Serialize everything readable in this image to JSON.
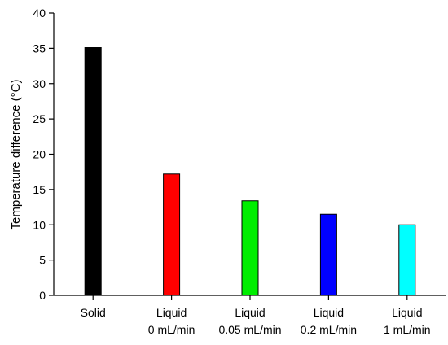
{
  "chart_data": {
    "type": "bar",
    "title": "",
    "xlabel": "",
    "ylabel": "Temperature difference (°C)",
    "ylim": [
      0,
      40
    ],
    "yticks": [
      0,
      5,
      10,
      15,
      20,
      25,
      30,
      35,
      40
    ],
    "categories": [
      [
        "Solid"
      ],
      [
        "Liquid",
        "0 mL/min"
      ],
      [
        "Liquid",
        "0.05 mL/min"
      ],
      [
        "Liquid",
        "0.2 mL/min"
      ],
      [
        "Liquid",
        "1 mL/min"
      ]
    ],
    "values": [
      35.1,
      17.2,
      13.4,
      11.5,
      10.0
    ],
    "colors": [
      "#000000",
      "#ff0000",
      "#00ee00",
      "#0000ff",
      "#00ffff"
    ],
    "grid": false,
    "legend": "none"
  }
}
